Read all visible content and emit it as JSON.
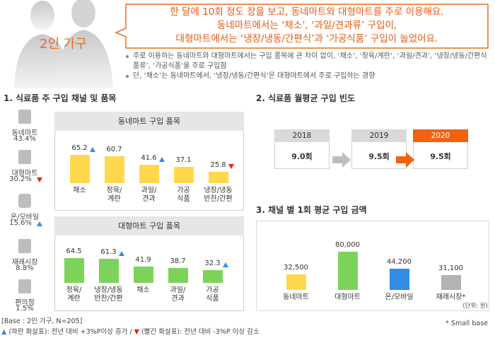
{
  "header": {
    "label": "2인 가구",
    "callout": [
      "한 달에 10회 정도 장을 보고, 동네마트와 대형마트를 주로 이용해요.",
      "동네마트에서는 ‘채소’, ‘과일/견과류’ 구입이,",
      "대형마트에서는 ‘냉장/냉동/간편식’과 ‘가공식품’ 구입이 늘었어요."
    ],
    "bullets": [
      "주로 이용하는 동네마트와 대형마트에서는 구입 품목에 큰 차이 없이, ‘채소’, ‘정육/계란’, ‘과일/견과’, ‘냉장/냉동/간편식품류’, ‘가공식품’을 주로 구입함",
      "단, ‘채소’는 동네마트에서, ‘냉장/냉동/간편식’은 대형마트에서 주로 구입하는 경향"
    ]
  },
  "section1": {
    "title": "1. 식료품 주 구입 채널 및 품목",
    "channels": [
      {
        "name": "동네마트",
        "share": "43.4%"
      },
      {
        "name": "대형마트",
        "share": "30.2%",
        "trend": "down"
      },
      {
        "name": "온/모바일",
        "share": "15.6%",
        "trend": "up"
      },
      {
        "name": "재래시장",
        "share": "8.8%"
      },
      {
        "name": "편의점",
        "share": "1.5%"
      }
    ]
  },
  "chart_data": [
    {
      "type": "bar",
      "title": "동네마트 구입 품목",
      "categories": [
        "채소",
        "정육/\n계란",
        "과일/\n견과",
        "가공\n식품",
        "냉장/냉동\n반찬/간편"
      ],
      "values": [
        65.2,
        60.7,
        41.6,
        37.1,
        25.8
      ],
      "trends": [
        "up",
        null,
        "up",
        null,
        "down"
      ],
      "color": "#ffd84d"
    },
    {
      "type": "bar",
      "title": "대형마트 구입 품목",
      "categories": [
        "정육/\n계란",
        "냉장/냉동\n반찬/간편",
        "채소",
        "과일/\n견과",
        "가공\n식품"
      ],
      "values": [
        64.5,
        61.3,
        41.9,
        38.7,
        32.3
      ],
      "trends": [
        null,
        "up",
        null,
        null,
        "up"
      ],
      "color": "#7dd35a"
    },
    {
      "type": "bar",
      "title": "3. 채널 별 1회 평균 구입 금액",
      "categories": [
        "동네마트",
        "대형마트",
        "온/모바일",
        "재래시장*"
      ],
      "values": [
        32500,
        80000,
        44200,
        31100
      ],
      "value_labels": [
        "32,500",
        "80,000",
        "44,200",
        "31,100"
      ],
      "colors": [
        "#ffd84d",
        "#7dd35a",
        "#2f8de4",
        "#b3b3b3"
      ],
      "unit": "(단위: 원)",
      "note": "* Small base"
    }
  ],
  "frequency": {
    "title": "2. 식료품 월평균 구입 빈도",
    "items": [
      {
        "year": "2018",
        "value": "9.0회"
      },
      {
        "year": "2019",
        "value": "9.5회"
      },
      {
        "year": "2020",
        "value": "9.5회",
        "highlight": true
      }
    ]
  },
  "footer": {
    "base": "[Base : 2인 가구, N=205]",
    "legend": [
      {
        "symbol": "▲",
        "color": "#2f8de4",
        "text": " (파란 화살표): 전년 대비 +3%P이상 증가 / "
      },
      {
        "symbol": "▼",
        "color": "#e02020",
        "text": " (빨간 화살표): 전년 대비 -3%P 이상 감소"
      }
    ]
  }
}
